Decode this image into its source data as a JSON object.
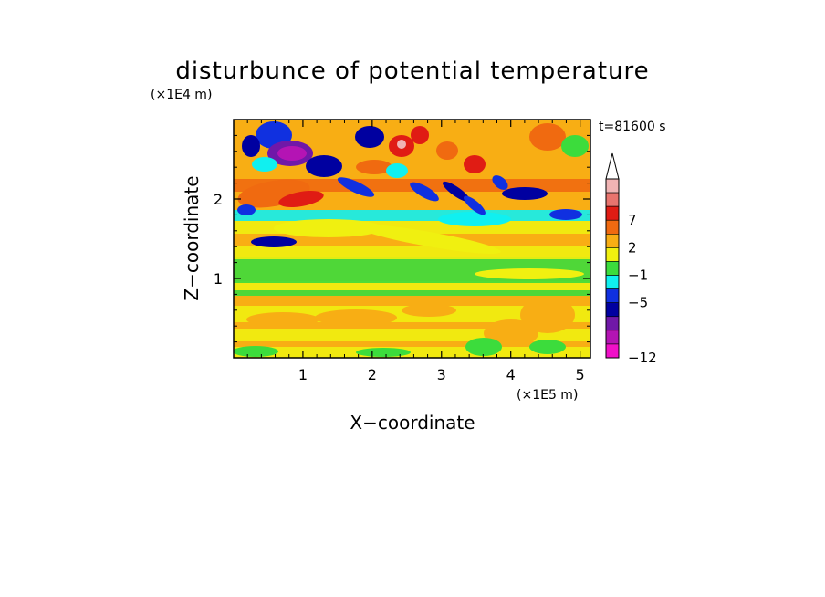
{
  "chart_data": {
    "type": "heatmap",
    "title": "disturbunce of potential temperature",
    "time_label": "t=81600 s",
    "xlabel": "X−coordinate",
    "ylabel": "Z−coordinate",
    "x_unit": "(×1E5 m)",
    "y_unit": "(×1E4 m)",
    "xlim": [
      0,
      5.15
    ],
    "ylim": [
      0,
      3.0
    ],
    "x_ticks": [
      {
        "value": 1,
        "label": "1"
      },
      {
        "value": 2,
        "label": "2"
      },
      {
        "value": 3,
        "label": "3"
      },
      {
        "value": 4,
        "label": "4"
      },
      {
        "value": 5,
        "label": "5"
      }
    ],
    "y_ticks": [
      {
        "value": 1,
        "label": "1"
      },
      {
        "value": 2,
        "label": "2"
      }
    ],
    "colorbar": {
      "extend": "max",
      "levels": [
        {
          "color": "#f0b4b4",
          "label": ""
        },
        {
          "color": "#e8746e",
          "label": ""
        },
        {
          "color": "#e01c14",
          "label": "7"
        },
        {
          "color": "#f06a10",
          "label": ""
        },
        {
          "color": "#f8ae14",
          "label": "2"
        },
        {
          "color": "#f0f010",
          "label": ""
        },
        {
          "color": "#3cdc3c",
          "label": "−1"
        },
        {
          "color": "#10f0f0",
          "label": ""
        },
        {
          "color": "#1030e0",
          "label": "−5"
        },
        {
          "color": "#0000a0",
          "label": ""
        },
        {
          "color": "#7018a8",
          "label": ""
        },
        {
          "color": "#b414b4",
          "label": ""
        },
        {
          "color": "#f010c8",
          "label": "−12"
        }
      ]
    },
    "colors": {
      "yellow": "#f0f010",
      "orange": "#f8ae14",
      "dark_orange": "#f06a10",
      "red": "#e01c14",
      "pink": "#e8746e",
      "light_pink": "#f0b4b4",
      "green": "#3cdc3c",
      "cyan": "#10f0f0",
      "blue": "#1030e0",
      "navy": "#0000a0",
      "purple": "#7018a8",
      "magenta": "#b414b4"
    }
  }
}
